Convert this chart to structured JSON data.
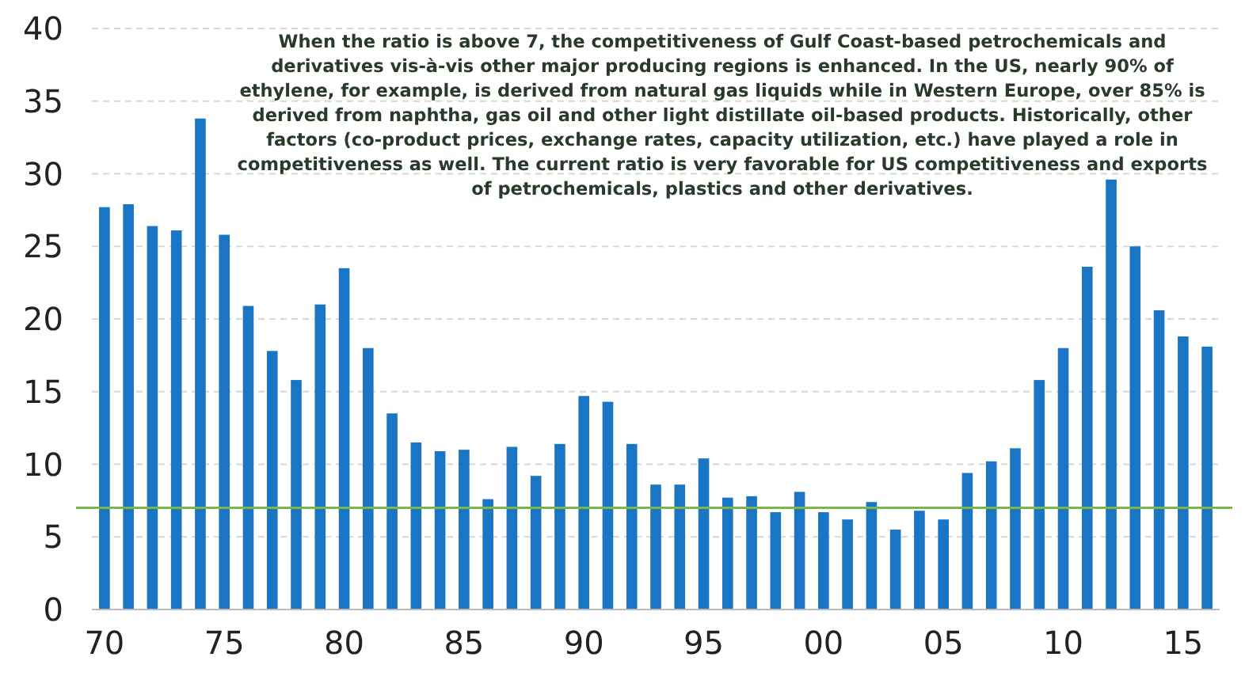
{
  "chart_data": {
    "type": "bar",
    "categories": [
      "70",
      null,
      null,
      null,
      null,
      "75",
      null,
      null,
      null,
      null,
      "80",
      null,
      null,
      null,
      null,
      "85",
      null,
      null,
      null,
      null,
      "90",
      null,
      null,
      null,
      null,
      "95",
      null,
      null,
      null,
      null,
      "00",
      null,
      null,
      null,
      null,
      "05",
      null,
      null,
      null,
      null,
      "10",
      null,
      null,
      null,
      null,
      "15",
      null
    ],
    "values": [
      27.7,
      27.9,
      26.4,
      26.1,
      33.8,
      25.8,
      20.9,
      17.8,
      15.8,
      21.0,
      23.5,
      18.0,
      13.5,
      11.5,
      10.9,
      11.0,
      7.6,
      11.2,
      9.2,
      11.4,
      14.7,
      14.3,
      11.4,
      8.6,
      8.6,
      10.4,
      7.7,
      7.8,
      6.7,
      8.1,
      6.7,
      6.2,
      7.4,
      5.5,
      6.8,
      6.2,
      9.4,
      10.2,
      11.1,
      15.8,
      18.0,
      23.6,
      29.6,
      25.0,
      20.6,
      18.8,
      18.1
    ],
    "color": "#1a75c4",
    "ylim": [
      0,
      40
    ],
    "yticks": [
      0,
      5,
      10,
      15,
      20,
      25,
      30,
      35,
      40
    ],
    "grid": "y",
    "ref_lines": [
      {
        "axis": "y",
        "value": 7,
        "color": "#7ab648"
      }
    ],
    "annotations": [
      "When the ratio is above 7, the competitiveness of Gulf Coast-based petrochemicals and",
      "derivatives vis-à-vis other major producing regions is enhanced. In the US, nearly 90% of",
      "ethylene, for example, is derived from natural gas liquids while in Western Europe, over 85% is",
      "derived from naphtha, gas oil and other light distillate oil-based products. Historically, other",
      "factors (co-product prices, exchange rates, capacity utilization, etc.) have played a role in",
      "competitiveness as well. The current ratio is very favorable for US competitiveness and exports",
      "of petrochemicals, plastics and other derivatives."
    ]
  }
}
